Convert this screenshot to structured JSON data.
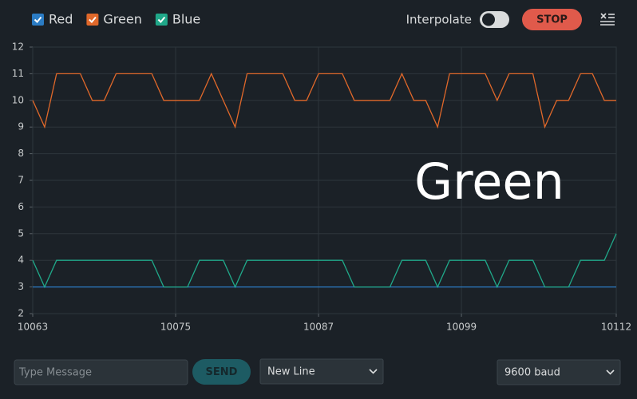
{
  "chart_data": {
    "type": "line",
    "annotation": "Green",
    "x": [
      10063,
      10064,
      10065,
      10066,
      10067,
      10068,
      10069,
      10070,
      10071,
      10072,
      10073,
      10074,
      10075,
      10076,
      10077,
      10078,
      10079,
      10080,
      10081,
      10082,
      10083,
      10084,
      10085,
      10086,
      10087,
      10088,
      10089,
      10090,
      10091,
      10092,
      10093,
      10094,
      10095,
      10096,
      10097,
      10098,
      10099,
      10100,
      10101,
      10102,
      10103,
      10104,
      10105,
      10106,
      10107,
      10108,
      10109,
      10110,
      10111,
      10112
    ],
    "series": [
      {
        "name": "Red",
        "color": "#2b7cc4",
        "values": [
          3,
          3,
          3,
          3,
          3,
          3,
          3,
          3,
          3,
          3,
          3,
          3,
          3,
          3,
          3,
          3,
          3,
          3,
          3,
          3,
          3,
          3,
          3,
          3,
          3,
          3,
          3,
          3,
          3,
          3,
          3,
          3,
          3,
          3,
          3,
          3,
          3,
          3,
          3,
          3,
          3,
          3,
          3,
          3,
          3,
          3,
          3,
          3,
          3,
          3
        ]
      },
      {
        "name": "Green",
        "color": "#e0682a",
        "values": [
          10,
          9,
          11,
          11,
          11,
          10,
          10,
          11,
          11,
          11,
          11,
          10,
          10,
          10,
          10,
          11,
          10,
          9,
          11,
          11,
          11,
          11,
          10,
          10,
          11,
          11,
          11,
          10,
          10,
          10,
          10,
          11,
          10,
          10,
          9,
          11,
          11,
          11,
          11,
          10,
          11,
          11,
          11,
          9,
          10,
          10,
          11,
          11,
          10,
          10
        ]
      },
      {
        "name": "Blue",
        "color": "#20a889",
        "values": [
          4,
          3,
          4,
          4,
          4,
          4,
          4,
          4,
          4,
          4,
          4,
          3,
          3,
          3,
          4,
          4,
          4,
          3,
          4,
          4,
          4,
          4,
          4,
          4,
          4,
          4,
          4,
          3,
          3,
          3,
          3,
          4,
          4,
          4,
          3,
          4,
          4,
          4,
          4,
          3,
          4,
          4,
          4,
          3,
          3,
          3,
          4,
          4,
          4,
          5
        ]
      }
    ],
    "xlim": [
      10063,
      10112
    ],
    "xticks": [
      10063,
      10075,
      10087,
      10099,
      10112
    ],
    "ylim": [
      2,
      12
    ],
    "yticks": [
      2,
      3,
      4,
      5,
      6,
      7,
      8,
      9,
      10,
      11,
      12
    ],
    "grid": true
  },
  "ui": {
    "interpolate": "Interpolate",
    "stop": "STOP",
    "message_placeholder": "Type Message",
    "send": "SEND",
    "line_ending": "New Line",
    "baud": "9600 baud"
  }
}
